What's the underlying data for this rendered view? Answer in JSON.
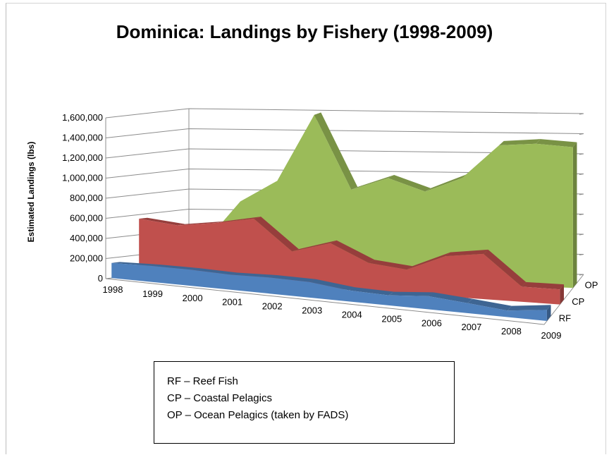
{
  "chart_data": {
    "type": "area",
    "title": "Dominica: Landings by Fishery (1998-2009)",
    "xlabel": "",
    "ylabel": "Estimated Landings (lbs)",
    "ylim": [
      0,
      1600000
    ],
    "y_ticks": [
      "0",
      "200,000",
      "400,000",
      "600,000",
      "800,000",
      "1,000,000",
      "1,200,000",
      "1,400,000",
      "1,600,000"
    ],
    "categories": [
      "1998",
      "1999",
      "2000",
      "2001",
      "2002",
      "2003",
      "2004",
      "2005",
      "2006",
      "2007",
      "2008",
      "2009"
    ],
    "depth_labels": [
      "RF",
      "CP",
      "OP"
    ],
    "series": [
      {
        "name": "RF",
        "color": "#4f81bd",
        "values": [
          150000,
          160000,
          160000,
          150000,
          160000,
          155000,
          110000,
          100000,
          130000,
          100000,
          65000,
          110000
        ]
      },
      {
        "name": "CP",
        "color": "#c0504d",
        "values": [
          560000,
          520000,
          570000,
          640000,
          340000,
          450000,
          280000,
          240000,
          400000,
          450000,
          150000,
          150000
        ]
      },
      {
        "name": "OP",
        "color": "#9bbb59",
        "values": [
          170000,
          290000,
          730000,
          950000,
          1620000,
          890000,
          1020000,
          900000,
          1050000,
          1390000,
          1420000,
          1400000
        ]
      }
    ],
    "grid": true,
    "legend_position": "bottom-center"
  },
  "legend_note": {
    "lines": [
      "RF – Reef Fish",
      "CP – Coastal Pelagics",
      "OP – Ocean Pelagics (taken by FADS)"
    ]
  }
}
